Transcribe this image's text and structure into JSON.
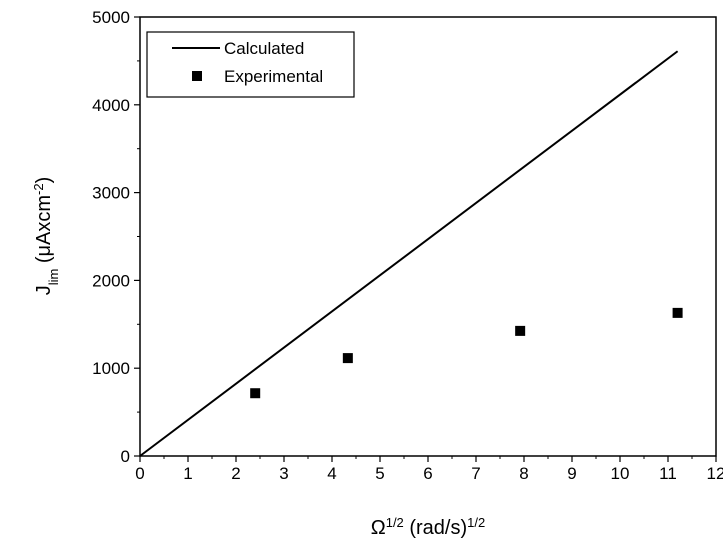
{
  "chart_data": {
    "type": "scatter",
    "xlabel": {
      "symbol": "Ω",
      "sup": "1/2",
      "unit": " (rad/s)",
      "unit_sup": "1/2"
    },
    "ylabel": {
      "symbol": "J",
      "sub": "lim",
      "unit": " (μAxcm",
      "unit_sup": "-2",
      "unit_close": ")"
    },
    "xlim": [
      0,
      12
    ],
    "ylim": [
      0,
      5000
    ],
    "x_ticks": [
      0,
      1,
      2,
      3,
      4,
      5,
      6,
      7,
      8,
      9,
      10,
      11,
      12
    ],
    "y_ticks": [
      0,
      1000,
      2000,
      3000,
      4000,
      5000
    ],
    "grid": false,
    "legend": {
      "position": "top-left",
      "entries": [
        {
          "label": "Calculated",
          "style": "line"
        },
        {
          "label": "Experimental",
          "style": "square-marker"
        }
      ]
    },
    "series": [
      {
        "name": "Calculated",
        "style": "line",
        "color": "#000000",
        "x": [
          0,
          11.2
        ],
        "y": [
          0,
          4610
        ]
      },
      {
        "name": "Experimental",
        "style": "square-marker",
        "color": "#000000",
        "x": [
          2.4,
          4.33,
          7.92,
          11.2
        ],
        "y": [
          715,
          1115,
          1425,
          1630
        ]
      }
    ]
  }
}
